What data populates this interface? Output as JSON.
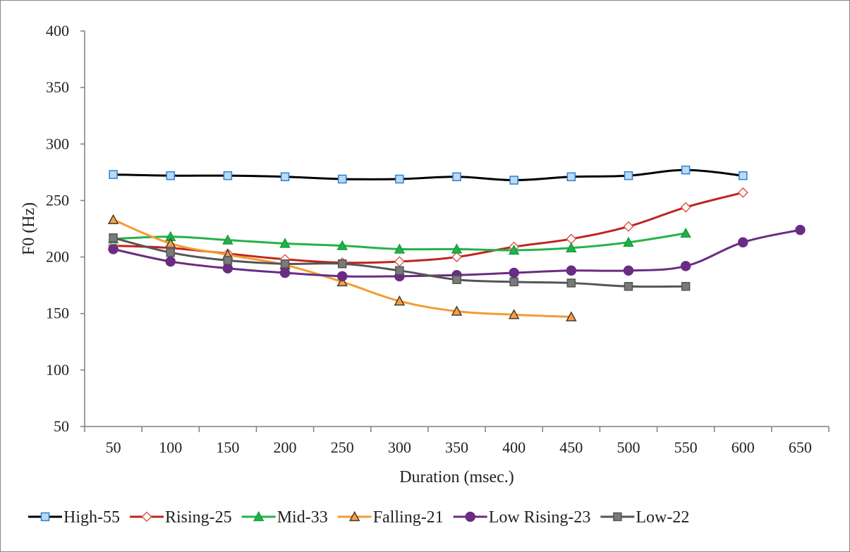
{
  "chart_data": {
    "type": "line",
    "title": "",
    "xlabel": "Duration (msec.)",
    "ylabel": "F0 (Hz)",
    "ylim": [
      50,
      400
    ],
    "yticks": [
      "50",
      "100",
      "150",
      "200",
      "250",
      "300",
      "350",
      "400"
    ],
    "categories": [
      "50",
      "100",
      "150",
      "200",
      "250",
      "300",
      "350",
      "400",
      "450",
      "500",
      "550",
      "600",
      "650"
    ],
    "grid": false,
    "legend_position": "bottom",
    "series": [
      {
        "name": "High-55",
        "color": "#000000",
        "marker": "square",
        "marker_color": "#2f7fd0",
        "marker_fill": "#b9daf5",
        "values": [
          273,
          272,
          272,
          271,
          269,
          269,
          271,
          268,
          271,
          272,
          277,
          272,
          null
        ]
      },
      {
        "name": "Rising-25",
        "color": "#c0241c",
        "marker": "diamond",
        "marker_color": "#e05a50",
        "marker_fill": "#ffffff",
        "values": [
          210,
          208,
          203,
          198,
          195,
          196,
          200,
          209,
          216,
          227,
          244,
          257,
          null
        ]
      },
      {
        "name": "Mid-33",
        "color": "#26b24a",
        "marker": "triangle",
        "marker_color": "#14a03a",
        "marker_fill": "#22b04a",
        "values": [
          216,
          218,
          215,
          212,
          210,
          207,
          207,
          206,
          208,
          213,
          221,
          null,
          null
        ]
      },
      {
        "name": "Falling-21",
        "color": "#f39c2e",
        "marker": "triangle",
        "marker_color": "#4a3a2a",
        "marker_fill": "#f3a04a",
        "values": [
          233,
          212,
          202,
          193,
          178,
          161,
          152,
          149,
          147,
          null,
          null,
          null,
          null
        ]
      },
      {
        "name": "Low Rising-23",
        "color": "#6a2c82",
        "marker": "circle",
        "marker_color": "#6a2c82",
        "marker_fill": "#6a2c82",
        "values": [
          207,
          196,
          190,
          186,
          183,
          183,
          184,
          186,
          188,
          188,
          192,
          213,
          224
        ]
      },
      {
        "name": "Low-22",
        "color": "#555555",
        "marker": "square",
        "marker_color": "#555555",
        "marker_fill": "#7a7a7a",
        "values": [
          217,
          204,
          197,
          194,
          194,
          188,
          180,
          178,
          177,
          174,
          174,
          null,
          null
        ]
      }
    ]
  }
}
